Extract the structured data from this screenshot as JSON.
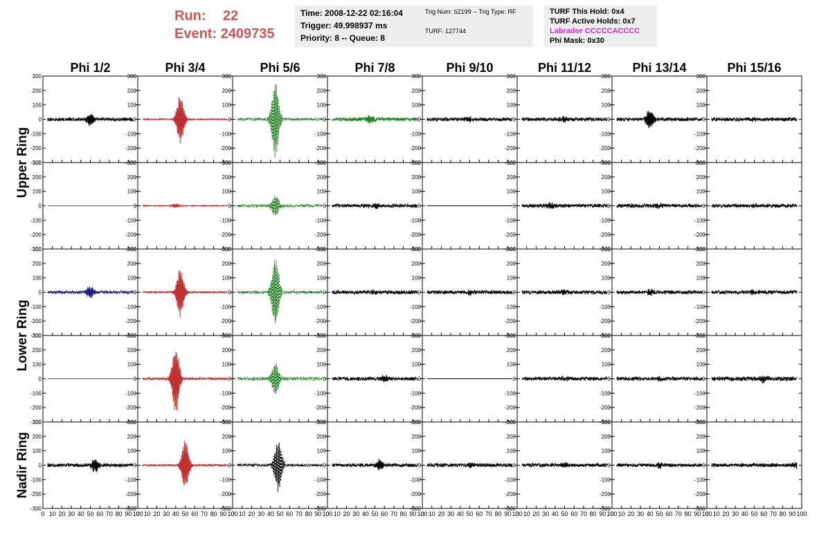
{
  "header": {
    "run_label": "Run:",
    "run_value": "22",
    "event_label": "Event:",
    "event_value": "2409735",
    "time": "Time: 2008-12-22 02:16:04",
    "trigger": "Trigger: 49.998937 ms",
    "priority": "Priority: 8 -- Queue: 8",
    "trig_num": "Trig Num: 62199 -- Trig Type: RF",
    "turf": "TURF: 127744",
    "turf_hold": "TURF This Hold: 0x4",
    "turf_active": "TURF Active Holds: 0x7",
    "labrador": "Labrador CCCCCACCCC",
    "phi_mask": "Phi Mask: 0x30"
  },
  "colors": {
    "black": "#000000",
    "red": "#c03030",
    "green": "#208020",
    "blue": "#202080",
    "run_text": "#cc5555",
    "magenta": "#e020e0"
  },
  "chart_data": {
    "type": "line",
    "columns": [
      "Phi 1/2",
      "Phi 3/4",
      "Phi 5/6",
      "Phi 7/8",
      "Phi 9/10",
      "Phi 11/12",
      "Phi 13/14",
      "Phi 15/16"
    ],
    "row_groups": [
      "Upper Ring",
      "Lower Ring",
      "Nadir Ring"
    ],
    "xlim": [
      0,
      100
    ],
    "ylim": [
      -300,
      300
    ],
    "x_ticks": [
      0,
      10,
      20,
      30,
      40,
      50,
      60,
      70,
      80,
      90,
      100
    ],
    "y_ticks": [
      -300,
      -200,
      -100,
      0,
      100,
      200,
      300
    ],
    "panels": [
      [
        {
          "color": "black",
          "amp": 45,
          "peak": 50,
          "noise": 12,
          "dash": false
        },
        {
          "color": "red",
          "amp": 180,
          "peak": 45,
          "noise": 4,
          "dash": false
        },
        {
          "color": "green",
          "amp": 290,
          "peak": 45,
          "noise": 10,
          "dash": true
        },
        {
          "color": "green",
          "amp": 30,
          "peak": 45,
          "noise": 12,
          "dash": false
        },
        {
          "color": "black",
          "amp": 15,
          "peak": 50,
          "noise": 12,
          "dash": false
        },
        {
          "color": "black",
          "amp": 20,
          "peak": 50,
          "noise": 12,
          "dash": false
        },
        {
          "color": "black",
          "amp": 70,
          "peak": 40,
          "noise": 12,
          "dash": false
        },
        {
          "color": "black",
          "amp": 15,
          "peak": 50,
          "noise": 12,
          "dash": false
        }
      ],
      [
        {
          "color": "red",
          "amp": 0,
          "peak": 50,
          "noise": 0,
          "dash": false
        },
        {
          "color": "red",
          "amp": 15,
          "peak": 40,
          "noise": 3,
          "dash": false
        },
        {
          "color": "green",
          "amp": 80,
          "peak": 45,
          "noise": 10,
          "dash": true
        },
        {
          "color": "black",
          "amp": 20,
          "peak": 50,
          "noise": 12,
          "dash": false
        },
        {
          "color": "black",
          "amp": 0,
          "peak": 50,
          "noise": 0,
          "dash": false
        },
        {
          "color": "black",
          "amp": 20,
          "peak": 35,
          "noise": 12,
          "dash": false
        },
        {
          "color": "black",
          "amp": 15,
          "peak": 50,
          "noise": 12,
          "dash": false
        },
        {
          "color": "black",
          "amp": 15,
          "peak": 50,
          "noise": 12,
          "dash": false
        }
      ],
      [
        {
          "color": "blue",
          "amp": 45,
          "peak": 50,
          "noise": 10,
          "dash": false
        },
        {
          "color": "red",
          "amp": 180,
          "peak": 45,
          "noise": 6,
          "dash": false
        },
        {
          "color": "green",
          "amp": 260,
          "peak": 45,
          "noise": 10,
          "dash": true
        },
        {
          "color": "black",
          "amp": 15,
          "peak": 50,
          "noise": 12,
          "dash": false
        },
        {
          "color": "black",
          "amp": 15,
          "peak": 50,
          "noise": 12,
          "dash": false
        },
        {
          "color": "black",
          "amp": 15,
          "peak": 50,
          "noise": 12,
          "dash": false
        },
        {
          "color": "black",
          "amp": 20,
          "peak": 40,
          "noise": 12,
          "dash": false
        },
        {
          "color": "black",
          "amp": 15,
          "peak": 50,
          "noise": 12,
          "dash": false
        }
      ],
      [
        {
          "color": "red",
          "amp": 0,
          "peak": 50,
          "noise": 0,
          "dash": false
        },
        {
          "color": "red",
          "amp": 250,
          "peak": 40,
          "noise": 8,
          "dash": false
        },
        {
          "color": "green",
          "amp": 120,
          "peak": 45,
          "noise": 12,
          "dash": true
        },
        {
          "color": "black",
          "amp": 20,
          "peak": 60,
          "noise": 12,
          "dash": false
        },
        {
          "color": "black",
          "amp": 0,
          "peak": 50,
          "noise": 0,
          "dash": false
        },
        {
          "color": "black",
          "amp": 15,
          "peak": 50,
          "noise": 12,
          "dash": false
        },
        {
          "color": "black",
          "amp": 15,
          "peak": 50,
          "noise": 12,
          "dash": false
        },
        {
          "color": "black",
          "amp": 25,
          "peak": 60,
          "noise": 14,
          "dash": false
        }
      ],
      [
        {
          "color": "black",
          "amp": 50,
          "peak": 55,
          "noise": 12,
          "dash": false
        },
        {
          "color": "red",
          "amp": 180,
          "peak": 50,
          "noise": 6,
          "dash": false
        },
        {
          "color": "black",
          "amp": 200,
          "peak": 48,
          "noise": 10,
          "dash": true
        },
        {
          "color": "black",
          "amp": 40,
          "peak": 55,
          "noise": 12,
          "dash": false
        },
        {
          "color": "black",
          "amp": 15,
          "peak": 50,
          "noise": 12,
          "dash": false
        },
        {
          "color": "black",
          "amp": 15,
          "peak": 50,
          "noise": 12,
          "dash": false
        },
        {
          "color": "black",
          "amp": 15,
          "peak": 50,
          "noise": 12,
          "dash": false
        },
        {
          "color": "black",
          "amp": 20,
          "peak": 95,
          "noise": 12,
          "dash": false
        }
      ]
    ]
  }
}
